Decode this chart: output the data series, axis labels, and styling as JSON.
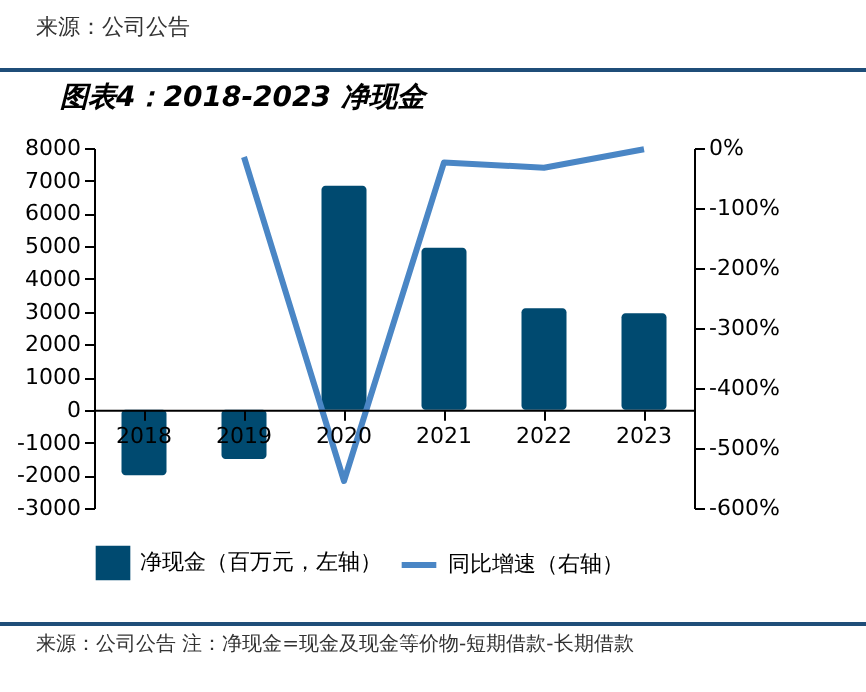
{
  "chart_data": {
    "type": "bar",
    "title": "图表4：2018-2023 净现金",
    "annotations": [
      "来源：公司公告",
      "来源：公司公告 注：净现金=现金及现金等价物-短期借款-长期借款"
    ],
    "categories": [
      "2018",
      "2019",
      "2020",
      "2021",
      "2022",
      "2023"
    ],
    "series": [
      {
        "name": "净现金（百万元，左轴）",
        "color": "#004a70",
        "values": [
          -2000,
          -1500,
          6850,
          4950,
          3100,
          2950
        ]
      },
      {
        "name": "同比增速（右轴）",
        "type": "line",
        "axis": "y2",
        "color": "#4a86c5",
        "values": [
          null,
          -15,
          -555,
          -24,
          -33,
          -2
        ]
      }
    ],
    "ylim": [
      -3000,
      8000
    ],
    "yticks": [
      -3000,
      -2000,
      -1000,
      0,
      1000,
      2000,
      3000,
      4000,
      5000,
      6000,
      7000,
      8000
    ],
    "y2lim": [
      -600,
      0
    ],
    "y2ticks": [
      {
        "value": -600,
        "label": "-600%"
      },
      {
        "value": -500,
        "label": "-500%"
      },
      {
        "value": -400,
        "label": "-400%"
      },
      {
        "value": -300,
        "label": "-300%"
      },
      {
        "value": -200,
        "label": "-200%"
      },
      {
        "value": -100,
        "label": "-100%"
      },
      {
        "value": 0,
        "label": "0%"
      }
    ],
    "grid": false,
    "legend": "bottom",
    "marker": "none",
    "line_style": "solid"
  }
}
